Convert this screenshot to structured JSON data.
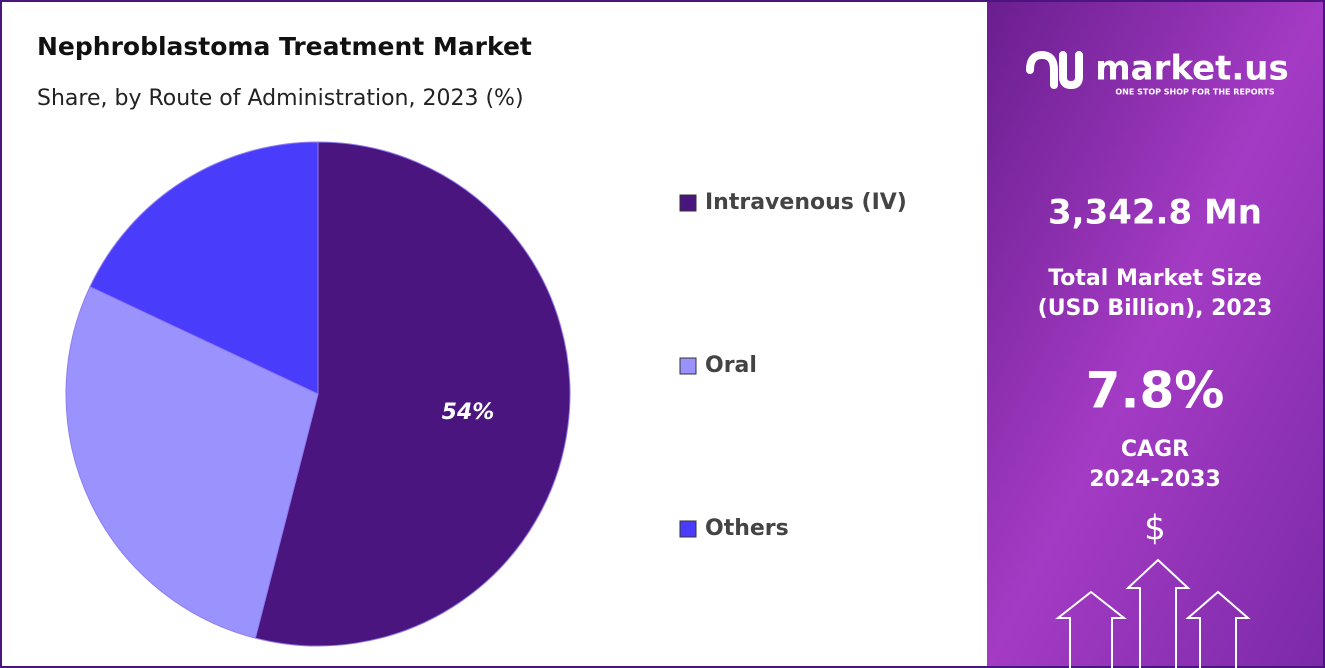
{
  "chart_data": {
    "type": "pie",
    "title": "Nephroblastoma Treatment Market",
    "subtitle": "Share, by Route of Administration, 2023 (%)",
    "categories": [
      "Intravenous (IV)",
      "Oral",
      "Others"
    ],
    "values": [
      54,
      28,
      18
    ],
    "value_labels": [
      "54%",
      null,
      null
    ],
    "colors": [
      "#4b1580",
      "#9b93fd",
      "#4a3cfb"
    ]
  },
  "panel": {
    "logo": "market.us",
    "tagline": "ONE STOP SHOP FOR THE REPORTS",
    "market_size": "3,342.8 Mn",
    "market_size_label_1": "Total Market Size",
    "market_size_label_2": "(USD Billion), 2023",
    "cagr": "7.8%",
    "cagr_label": "CAGR",
    "cagr_period": "2024-2033",
    "currency": "$"
  }
}
